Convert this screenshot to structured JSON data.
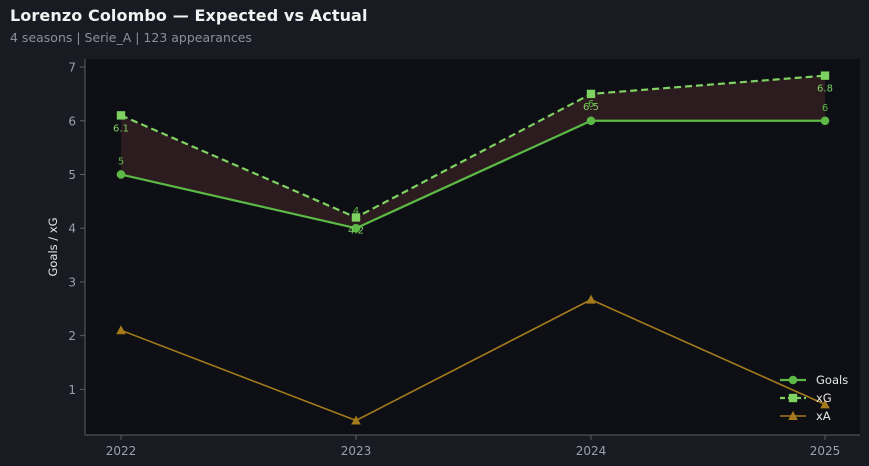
{
  "header": {
    "title": "Lorenzo Colombo — Expected vs Actual",
    "subtitle": "4 seasons | Serie_A | 123 appearances"
  },
  "colors": {
    "goals": "#5cb946",
    "xg": "#7fd162",
    "xa": "#a57a1c",
    "fill": "#2c1c1f",
    "plot_bg": "#0d0f14",
    "page_bg": "#181b22"
  },
  "chart_data": {
    "type": "line",
    "x": [
      "2022",
      "2023",
      "2024",
      "2025"
    ],
    "ylabel": "Goals / xG",
    "xlabel": "",
    "ylim": [
      0.15,
      7.15
    ],
    "yticks": [
      1,
      2,
      3,
      4,
      5,
      6,
      7
    ],
    "grid": false,
    "legend_position": "bottom-right",
    "series": [
      {
        "name": "Goals",
        "key": "goals",
        "values": [
          5,
          4,
          6,
          6
        ],
        "labels": [
          "5",
          "4",
          "6",
          "6"
        ],
        "marker": "circle",
        "dash": "solid"
      },
      {
        "name": "xG",
        "key": "xg",
        "values": [
          6.1,
          4.2,
          6.5,
          6.84
        ],
        "labels": [
          "6.1",
          "4.2",
          "6.5",
          "6.8"
        ],
        "marker": "square",
        "dash": "dashed"
      },
      {
        "name": "xA",
        "key": "xa",
        "values": [
          2.1,
          0.42,
          2.67,
          0.72
        ],
        "marker": "triangle",
        "dash": "solid"
      }
    ],
    "shaded_between": [
      "Goals",
      "xG"
    ]
  }
}
